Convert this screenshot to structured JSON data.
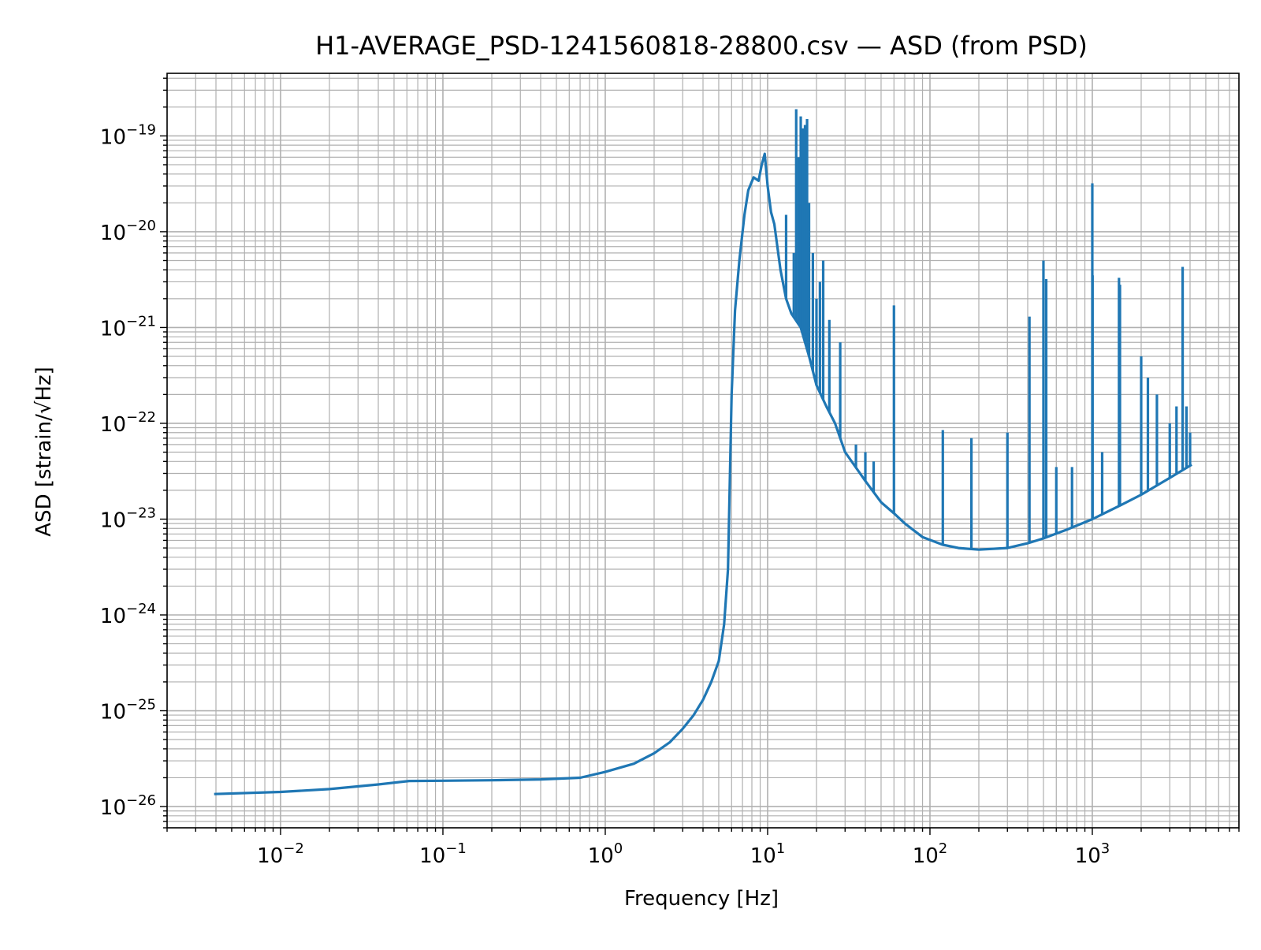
{
  "chart_data": {
    "type": "line",
    "title": "H1-AVERAGE_PSD-1241560818-28800.csv — ASD (from PSD)",
    "xlabel": "Frequency [Hz]",
    "ylabel": "ASD [strain/√Hz]",
    "x_scale": "log",
    "y_scale": "log",
    "xlim": [
      0.002,
      8000
    ],
    "ylim": [
      6e-27,
      4.5e-19
    ],
    "grid": "major and minor, both axes",
    "legend": "none",
    "x_ticks": [
      {
        "base": "10",
        "exp": "−2",
        "value": 0.01
      },
      {
        "base": "10",
        "exp": "−1",
        "value": 0.1
      },
      {
        "base": "10",
        "exp": "0",
        "value": 1
      },
      {
        "base": "10",
        "exp": "1",
        "value": 10
      },
      {
        "base": "10",
        "exp": "2",
        "value": 100
      },
      {
        "base": "10",
        "exp": "3",
        "value": 1000
      }
    ],
    "y_ticks": [
      {
        "base": "10",
        "exp": "−26",
        "value": 1e-26
      },
      {
        "base": "10",
        "exp": "−25",
        "value": 1e-25
      },
      {
        "base": "10",
        "exp": "−24",
        "value": 1e-24
      },
      {
        "base": "10",
        "exp": "−23",
        "value": 1e-23
      },
      {
        "base": "10",
        "exp": "−22",
        "value": 1e-22
      },
      {
        "base": "10",
        "exp": "−21",
        "value": 1e-21
      },
      {
        "base": "10",
        "exp": "−20",
        "value": 1e-20
      },
      {
        "base": "10",
        "exp": "−19",
        "value": 1e-19
      }
    ],
    "series": [
      {
        "color": "#1f77b4",
        "baseline": [
          [
            0.0039,
            1.35e-26
          ],
          [
            0.01,
            1.42e-26
          ],
          [
            0.02,
            1.52e-26
          ],
          [
            0.04,
            1.7e-26
          ],
          [
            0.062,
            1.85e-26
          ],
          [
            0.1,
            1.86e-26
          ],
          [
            0.2,
            1.88e-26
          ],
          [
            0.4,
            1.92e-26
          ],
          [
            0.7,
            2e-26
          ],
          [
            1.0,
            2.3e-26
          ],
          [
            1.5,
            2.8e-26
          ],
          [
            2.0,
            3.6e-26
          ],
          [
            2.5,
            4.7e-26
          ],
          [
            3.0,
            6.5e-26
          ],
          [
            3.5,
            9e-26
          ],
          [
            4.0,
            1.3e-25
          ],
          [
            4.5,
            2e-25
          ],
          [
            5.0,
            3.3e-25
          ],
          [
            5.4,
            8e-25
          ],
          [
            5.7,
            3e-24
          ],
          [
            6.0,
            2e-22
          ],
          [
            6.3,
            1.5e-21
          ],
          [
            6.7,
            5e-21
          ],
          [
            7.2,
            1.5e-20
          ],
          [
            7.6,
            2.7e-20
          ],
          [
            8.2,
            3.7e-20
          ],
          [
            8.8,
            3.4e-20
          ],
          [
            9.2,
            5e-20
          ],
          [
            9.6,
            6.5e-20
          ],
          [
            10.0,
            3e-20
          ],
          [
            10.5,
            1.6e-20
          ],
          [
            11.0,
            1.2e-20
          ],
          [
            12.0,
            4e-21
          ],
          [
            13.0,
            2e-21
          ],
          [
            14.0,
            1.4e-21
          ],
          [
            16.0,
            1e-21
          ],
          [
            18.0,
            5e-22
          ],
          [
            20.0,
            2.5e-22
          ],
          [
            23.0,
            1.5e-22
          ],
          [
            26.0,
            1e-22
          ],
          [
            30.0,
            5e-23
          ],
          [
            40.0,
            2.5e-23
          ],
          [
            50.0,
            1.5e-23
          ],
          [
            60.0,
            1.15e-23
          ],
          [
            70.0,
            9e-24
          ],
          [
            90.0,
            6.5e-24
          ],
          [
            120.0,
            5.4e-24
          ],
          [
            150.0,
            5e-24
          ],
          [
            200.0,
            4.8e-24
          ],
          [
            300.0,
            5e-24
          ],
          [
            400.0,
            5.6e-24
          ],
          [
            500.0,
            6.3e-24
          ],
          [
            700.0,
            7.8e-24
          ],
          [
            1000.0,
            1e-23
          ],
          [
            1500.0,
            1.4e-23
          ],
          [
            2000.0,
            1.8e-23
          ],
          [
            3000.0,
            2.7e-23
          ],
          [
            4096.0,
            3.7e-23
          ]
        ],
        "spikes": [
          [
            13.0,
            1.5e-20
          ],
          [
            14.5,
            6e-21
          ],
          [
            15.0,
            1.9e-19
          ],
          [
            15.5,
            6e-20
          ],
          [
            16.0,
            1.6e-19
          ],
          [
            16.5,
            1.2e-19
          ],
          [
            17.0,
            1.3e-19
          ],
          [
            17.5,
            1.5e-19
          ],
          [
            18.0,
            2e-20
          ],
          [
            19.0,
            6e-21
          ],
          [
            20.0,
            2e-21
          ],
          [
            21.0,
            3e-21
          ],
          [
            22.0,
            5e-21
          ],
          [
            24.0,
            1.2e-21
          ],
          [
            28.0,
            7e-22
          ],
          [
            35.0,
            6e-23
          ],
          [
            40.0,
            5e-23
          ],
          [
            45.0,
            4e-23
          ],
          [
            60.0,
            1.7e-21
          ],
          [
            120.0,
            8.5e-23
          ],
          [
            180.0,
            7e-23
          ],
          [
            300.0,
            8e-23
          ],
          [
            410.0,
            1.3e-21
          ],
          [
            500.0,
            5e-21
          ],
          [
            520.0,
            3.2e-21
          ],
          [
            600.0,
            3.5e-23
          ],
          [
            750.0,
            3.5e-23
          ],
          [
            1000.0,
            3.2e-20
          ],
          [
            1004.0,
            3.5e-21
          ],
          [
            1150.0,
            5e-23
          ],
          [
            1460.0,
            3.3e-21
          ],
          [
            1480.0,
            2.8e-21
          ],
          [
            2000.0,
            5e-22
          ],
          [
            2200.0,
            3e-22
          ],
          [
            2500.0,
            2e-22
          ],
          [
            3000.0,
            1e-22
          ],
          [
            3300.0,
            1.5e-22
          ],
          [
            3600.0,
            4.3e-21
          ],
          [
            3800.0,
            1.5e-22
          ],
          [
            4000.0,
            8e-23
          ]
        ]
      }
    ]
  }
}
